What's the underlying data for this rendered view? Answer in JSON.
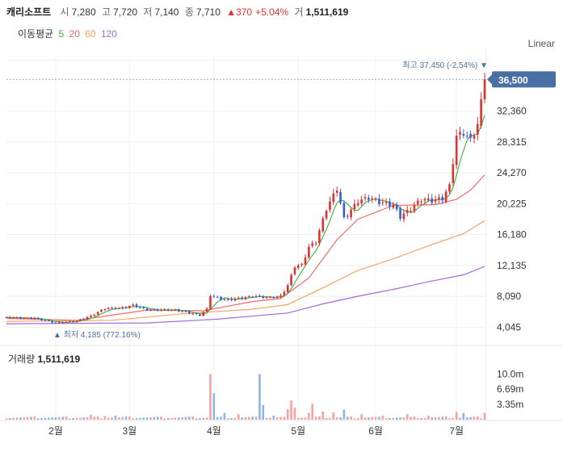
{
  "header": {
    "name": "캐리소프트",
    "open_label": "시",
    "open": "7,280",
    "high_label": "고",
    "high": "7,720",
    "low_label": "저",
    "low": "7,140",
    "close_label": "종",
    "close": "7,710",
    "change": "▲370",
    "change_pct": "+5.04%",
    "vol_label": "거",
    "volume": "1,511,619"
  },
  "ma_legend": {
    "label": "이동평균",
    "items": [
      {
        "text": "5",
        "color": "#3cb043"
      },
      {
        "text": "20",
        "color": "#f06a6a"
      },
      {
        "text": "60",
        "color": "#f4a261"
      },
      {
        "text": "120",
        "color": "#a06bdc"
      }
    ]
  },
  "scale_label": "Linear",
  "chart_data": {
    "type": "candlestick",
    "y_ticks": [
      "4,045",
      "8,090",
      "12,135",
      "16,180",
      "20,225",
      "24,270",
      "28,315",
      "32,360"
    ],
    "ylim": [
      2500,
      39500
    ],
    "current_price": "36,500",
    "high_annotation": "최고 37,450 (-2.54%)",
    "low_annotation": "▲ 최저 4,185 (772.16%)",
    "months": [
      {
        "label": "2월",
        "idx": 14
      },
      {
        "label": "3월",
        "idx": 35
      },
      {
        "label": "4월",
        "idx": 59
      },
      {
        "label": "5월",
        "idx": 83
      },
      {
        "label": "6월",
        "idx": 105
      },
      {
        "label": "7월",
        "idx": 128
      }
    ],
    "volume_label": "거래량",
    "volume_value": "1,511,619",
    "volume_ticks": [
      "10.0m",
      "6.69m",
      "3.35m"
    ],
    "volume_max": 12000000,
    "keypoints": [
      [
        0,
        5300
      ],
      [
        8,
        5200
      ],
      [
        14,
        4600
      ],
      [
        20,
        4850
      ],
      [
        24,
        5500
      ],
      [
        28,
        6500
      ],
      [
        32,
        6500
      ],
      [
        36,
        6900
      ],
      [
        40,
        6300
      ],
      [
        48,
        6300
      ],
      [
        55,
        5600
      ],
      [
        57,
        6400
      ],
      [
        58,
        8200
      ],
      [
        62,
        7600
      ],
      [
        66,
        7800
      ],
      [
        70,
        8100
      ],
      [
        75,
        7900
      ],
      [
        78,
        8100
      ],
      [
        80,
        9500
      ],
      [
        82,
        12000
      ],
      [
        84,
        12200
      ],
      [
        86,
        14500
      ],
      [
        88,
        15200
      ],
      [
        91,
        19500
      ],
      [
        94,
        22200
      ],
      [
        96,
        18200
      ],
      [
        100,
        20500
      ],
      [
        103,
        21000
      ],
      [
        106,
        20400
      ],
      [
        110,
        20000
      ],
      [
        112,
        18500
      ],
      [
        115,
        19500
      ],
      [
        118,
        20800
      ],
      [
        121,
        20600
      ],
      [
        124,
        20900
      ],
      [
        126,
        22500
      ],
      [
        128,
        29000
      ],
      [
        130,
        29500
      ],
      [
        132,
        28500
      ],
      [
        134,
        30500
      ],
      [
        135,
        33500
      ],
      [
        136,
        36500
      ]
    ],
    "ma_lines": [
      {
        "name": "20",
        "color": "#f06a6a",
        "points": [
          [
            0,
            5200
          ],
          [
            20,
            4950
          ],
          [
            40,
            6300
          ],
          [
            56,
            6200
          ],
          [
            70,
            7400
          ],
          [
            78,
            7800
          ],
          [
            86,
            10500
          ],
          [
            94,
            15500
          ],
          [
            100,
            18200
          ],
          [
            110,
            20000
          ],
          [
            122,
            20100
          ],
          [
            128,
            20800
          ],
          [
            132,
            22000
          ],
          [
            136,
            24000
          ]
        ]
      },
      {
        "name": "60",
        "color": "#f4a261",
        "points": [
          [
            0,
            4800
          ],
          [
            30,
            4950
          ],
          [
            50,
            5800
          ],
          [
            70,
            6400
          ],
          [
            80,
            7000
          ],
          [
            90,
            9200
          ],
          [
            100,
            11500
          ],
          [
            110,
            13000
          ],
          [
            120,
            14700
          ],
          [
            130,
            16300
          ],
          [
            136,
            18000
          ]
        ]
      },
      {
        "name": "120",
        "color": "#a06bdc",
        "points": [
          [
            0,
            4500
          ],
          [
            40,
            4600
          ],
          [
            60,
            5100
          ],
          [
            80,
            5900
          ],
          [
            90,
            7100
          ],
          [
            100,
            8100
          ],
          [
            110,
            9000
          ],
          [
            120,
            10000
          ],
          [
            130,
            10900
          ],
          [
            136,
            12000
          ]
        ]
      }
    ],
    "volume_spikes": [
      [
        24,
        1100000
      ],
      [
        28,
        800000
      ],
      [
        31,
        900000
      ],
      [
        34,
        700000
      ],
      [
        58,
        10000000
      ],
      [
        59,
        5800000
      ],
      [
        62,
        1500000
      ],
      [
        66,
        1200000
      ],
      [
        72,
        10000000
      ],
      [
        73,
        3200000
      ],
      [
        76,
        900000
      ],
      [
        80,
        2300000
      ],
      [
        81,
        4200000
      ],
      [
        82,
        2600000
      ],
      [
        86,
        1500000
      ],
      [
        87,
        3500000
      ],
      [
        90,
        1800000
      ],
      [
        93,
        1600000
      ],
      [
        96,
        2200000
      ],
      [
        101,
        1200000
      ],
      [
        107,
        900000
      ],
      [
        114,
        1200000
      ],
      [
        120,
        900000
      ],
      [
        128,
        1700000
      ],
      [
        130,
        1500000
      ],
      [
        136,
        1500000
      ]
    ]
  }
}
